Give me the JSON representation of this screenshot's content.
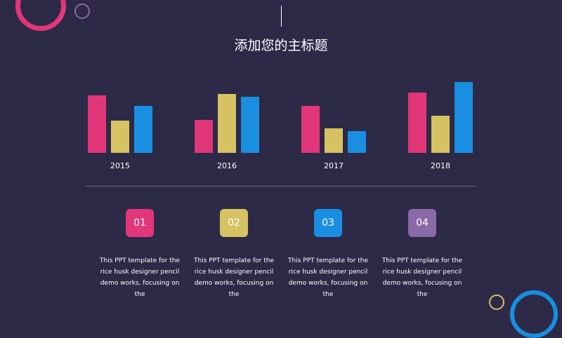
{
  "title": "添加您的主标题",
  "chart_data": {
    "type": "bar",
    "categories": [
      "2015",
      "2016",
      "2017",
      "2018"
    ],
    "series": [
      {
        "values": [
          82,
          47,
          67,
          86
        ],
        "color": "#e2367a"
      },
      {
        "values": [
          46,
          84,
          35,
          53
        ],
        "color": "#d6c262"
      },
      {
        "values": [
          67,
          80,
          31,
          101
        ],
        "color": "#1a8ee0"
      }
    ],
    "ylim": [
      0,
      110
    ],
    "grid": false
  },
  "cards": [
    {
      "number": "01",
      "color": "#e2367a",
      "text": "This PPT template for the rice husk designer pencil demo works, focusing on the"
    },
    {
      "number": "02",
      "color": "#d6c262",
      "text": "This PPT template for the rice husk designer pencil demo works, focusing on the"
    },
    {
      "number": "03",
      "color": "#1a8ee0",
      "text": "This PPT template for the rice husk designer pencil demo works, focusing on the"
    },
    {
      "number": "04",
      "color": "#8a6aa8",
      "text": "This PPT template for the rice husk designer pencil demo works, focusing on the"
    }
  ]
}
